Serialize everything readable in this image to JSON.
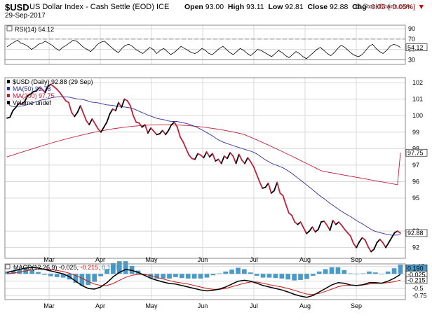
{
  "header": {
    "symbol": "$USD",
    "name": "US Dollar Index - Cash Settle (EOD)",
    "exchange": "ICE",
    "date": "29-Sep-2017",
    "open_label": "Open",
    "open": "93.00",
    "high_label": "High",
    "high": "93.11",
    "low_label": "Low",
    "low": "92.81",
    "close_label": "Close",
    "close": "92.88",
    "chg_label": "Chg",
    "chg": "-0.05 (-0.05%)",
    "chg_arrow": "▼",
    "credit": "@ StockCharts.com"
  },
  "colors": {
    "price": "#000000",
    "ma50": "#2f2f9f",
    "ma200": "#c0203a",
    "down": "#c0203a",
    "hist": "#4a9ac8",
    "macd": "#000000",
    "signal": "#d01818",
    "grid": "#d8d8d8"
  },
  "chart_data": [
    {
      "type": "line",
      "title": "RSI(14) 54.12",
      "legend": "RSI(14) 54.12",
      "y_ticks": [
        30,
        50,
        70,
        90
      ],
      "ylim": [
        21,
        97
      ],
      "reference_lines": [
        30,
        70
      ],
      "last_value_label": "54.12",
      "series": [
        {
          "name": "RSI(14)",
          "values": [
            55,
            60,
            64,
            68,
            62,
            60,
            56,
            50,
            54,
            60,
            62,
            66,
            62,
            58,
            52,
            48,
            54,
            58,
            63,
            68,
            66,
            60,
            54,
            50,
            46,
            52,
            60,
            64,
            66,
            60,
            54,
            48,
            44,
            52,
            58,
            60,
            56,
            50,
            46,
            42,
            48,
            54,
            50,
            42,
            48,
            52,
            46,
            40,
            44,
            50,
            56,
            52,
            48,
            44,
            42,
            46,
            52,
            48,
            42,
            40,
            46,
            52,
            56,
            50,
            44,
            40,
            46,
            52,
            48,
            42,
            38,
            44,
            50,
            48,
            44,
            40,
            36,
            42,
            48,
            44,
            38,
            34,
            40,
            46,
            42,
            36,
            32,
            38,
            44,
            50,
            54,
            48,
            42,
            38,
            44,
            52,
            58,
            54,
            48,
            42,
            38,
            36,
            40,
            48,
            56,
            60,
            52,
            46,
            42,
            48,
            56,
            60,
            58,
            54
          ]
        }
      ]
    },
    {
      "type": "line",
      "title": "$USD (Daily) 92.88 (29 Sep)",
      "x_labels": [
        "Mar",
        "Apr",
        "May",
        "Jun",
        "Jul",
        "Aug",
        "Sep"
      ],
      "y_ticks": [
        92,
        93,
        95,
        96,
        97,
        98,
        99,
        100,
        101,
        102
      ],
      "ylim": [
        91.35,
        102.3
      ],
      "series": [
        {
          "name": "$USD (Daily)",
          "legend": "$USD (Daily) 92.88 (29 Sep)",
          "last_label": "92.88",
          "values": [
            99.85,
            99.9,
            100.3,
            100.5,
            100.75,
            100.7,
            100.85,
            101.2,
            101.3,
            101.45,
            101.5,
            101.7,
            101.6,
            101.4,
            101.8,
            101.9,
            101.75,
            101.6,
            101.4,
            101.15,
            100.9,
            100.8,
            100.2,
            99.95,
            100.2,
            100.6,
            100.15,
            99.7,
            99.45,
            99.8,
            99.5,
            99.2,
            99.0,
            99.3,
            99.6,
            100.1,
            100.4,
            100.3,
            100.8,
            100.5,
            101.0,
            100.9,
            100.6,
            100.0,
            99.6,
            99.55,
            99.3,
            99.45,
            98.95,
            99.25,
            99.05,
            98.85,
            98.9,
            99.1,
            98.85,
            99.1,
            99.45,
            99.6,
            99.3,
            98.7,
            98.4,
            98.0,
            97.6,
            97.4,
            97.35,
            97.7,
            97.6,
            97.45,
            97.8,
            97.5,
            97.7,
            97.25,
            97.35,
            97.1,
            97.55,
            97.4,
            97.75,
            97.55,
            97.1,
            97.65,
            97.3,
            97.1,
            97.45,
            97.2,
            96.9,
            96.45,
            96.0,
            95.6,
            95.65,
            95.9,
            95.3,
            95.45,
            95.95,
            95.3,
            95.15,
            94.6,
            94.1,
            93.95,
            93.55,
            93.4,
            93.55,
            93.2,
            92.85,
            93.0,
            93.25,
            92.95,
            93.1,
            93.55,
            93.6,
            93.35,
            93.05,
            93.65,
            93.4,
            93.55,
            93.35,
            93.1,
            92.9,
            92.7,
            92.25,
            92.0,
            92.35,
            92.6,
            92.45,
            92.05,
            91.75,
            91.9,
            92.3,
            92.5,
            92.3,
            92.0,
            92.3,
            92.6,
            92.9,
            93.0,
            92.88
          ]
        },
        {
          "name": "MA(50)",
          "legend": "MA(50) 92.78",
          "last_label": "92.78"
        },
        {
          "name": "MA(200)",
          "legend": "MA(200) 97.75",
          "last_label": "97.75"
        },
        {
          "name": "Volume undef",
          "legend": "Volume undef"
        }
      ]
    },
    {
      "type": "line",
      "title": "MACD(12,26,9) -0.025, -0.215, 0.190",
      "y_ticks": [
        0.25,
        0,
        -0.25,
        -0.5,
        -0.75
      ],
      "ylim": [
        -0.88,
        0.34
      ],
      "last_labels": {
        "hist": "0.190",
        "macd": "-0.025",
        "signal": "-0.215"
      },
      "series": [
        {
          "name": "MACD(12,26,9)",
          "legend_value": "-0.025",
          "values": [
            0.05,
            0.1,
            0.15,
            0.2,
            0.22,
            0.2,
            0.15,
            0.1,
            0.05,
            0.0,
            -0.1,
            -0.25,
            -0.4,
            -0.5,
            -0.52,
            -0.45,
            -0.3,
            -0.1,
            0.05,
            0.15,
            0.12,
            0.05,
            -0.05,
            -0.15,
            -0.22,
            -0.28,
            -0.33,
            -0.35,
            -0.4,
            -0.45,
            -0.5,
            -0.55,
            -0.58,
            -0.56,
            -0.52,
            -0.45,
            -0.35,
            -0.25,
            -0.22,
            -0.25,
            -0.32,
            -0.4,
            -0.45,
            -0.5,
            -0.55,
            -0.62,
            -0.7,
            -0.76,
            -0.8,
            -0.74,
            -0.62,
            -0.5,
            -0.38,
            -0.3,
            -0.32,
            -0.38,
            -0.4,
            -0.37,
            -0.3,
            -0.3,
            -0.32,
            -0.25,
            -0.15,
            -0.02
          ]
        },
        {
          "name": "Signal",
          "legend_value": "-0.215",
          "values": [
            0.0,
            0.03,
            0.06,
            0.1,
            0.14,
            0.16,
            0.17,
            0.15,
            0.12,
            0.08,
            0.02,
            -0.06,
            -0.15,
            -0.26,
            -0.35,
            -0.4,
            -0.4,
            -0.33,
            -0.22,
            -0.12,
            -0.05,
            -0.02,
            -0.02,
            -0.06,
            -0.12,
            -0.18,
            -0.23,
            -0.28,
            -0.31,
            -0.35,
            -0.4,
            -0.45,
            -0.5,
            -0.53,
            -0.53,
            -0.5,
            -0.44,
            -0.38,
            -0.32,
            -0.28,
            -0.28,
            -0.32,
            -0.37,
            -0.41,
            -0.45,
            -0.5,
            -0.56,
            -0.63,
            -0.69,
            -0.7,
            -0.67,
            -0.6,
            -0.52,
            -0.44,
            -0.4,
            -0.39,
            -0.39,
            -0.38,
            -0.35,
            -0.33,
            -0.32,
            -0.3,
            -0.27,
            -0.215
          ]
        },
        {
          "name": "Histogram",
          "legend_value": "0.190"
        }
      ]
    }
  ]
}
